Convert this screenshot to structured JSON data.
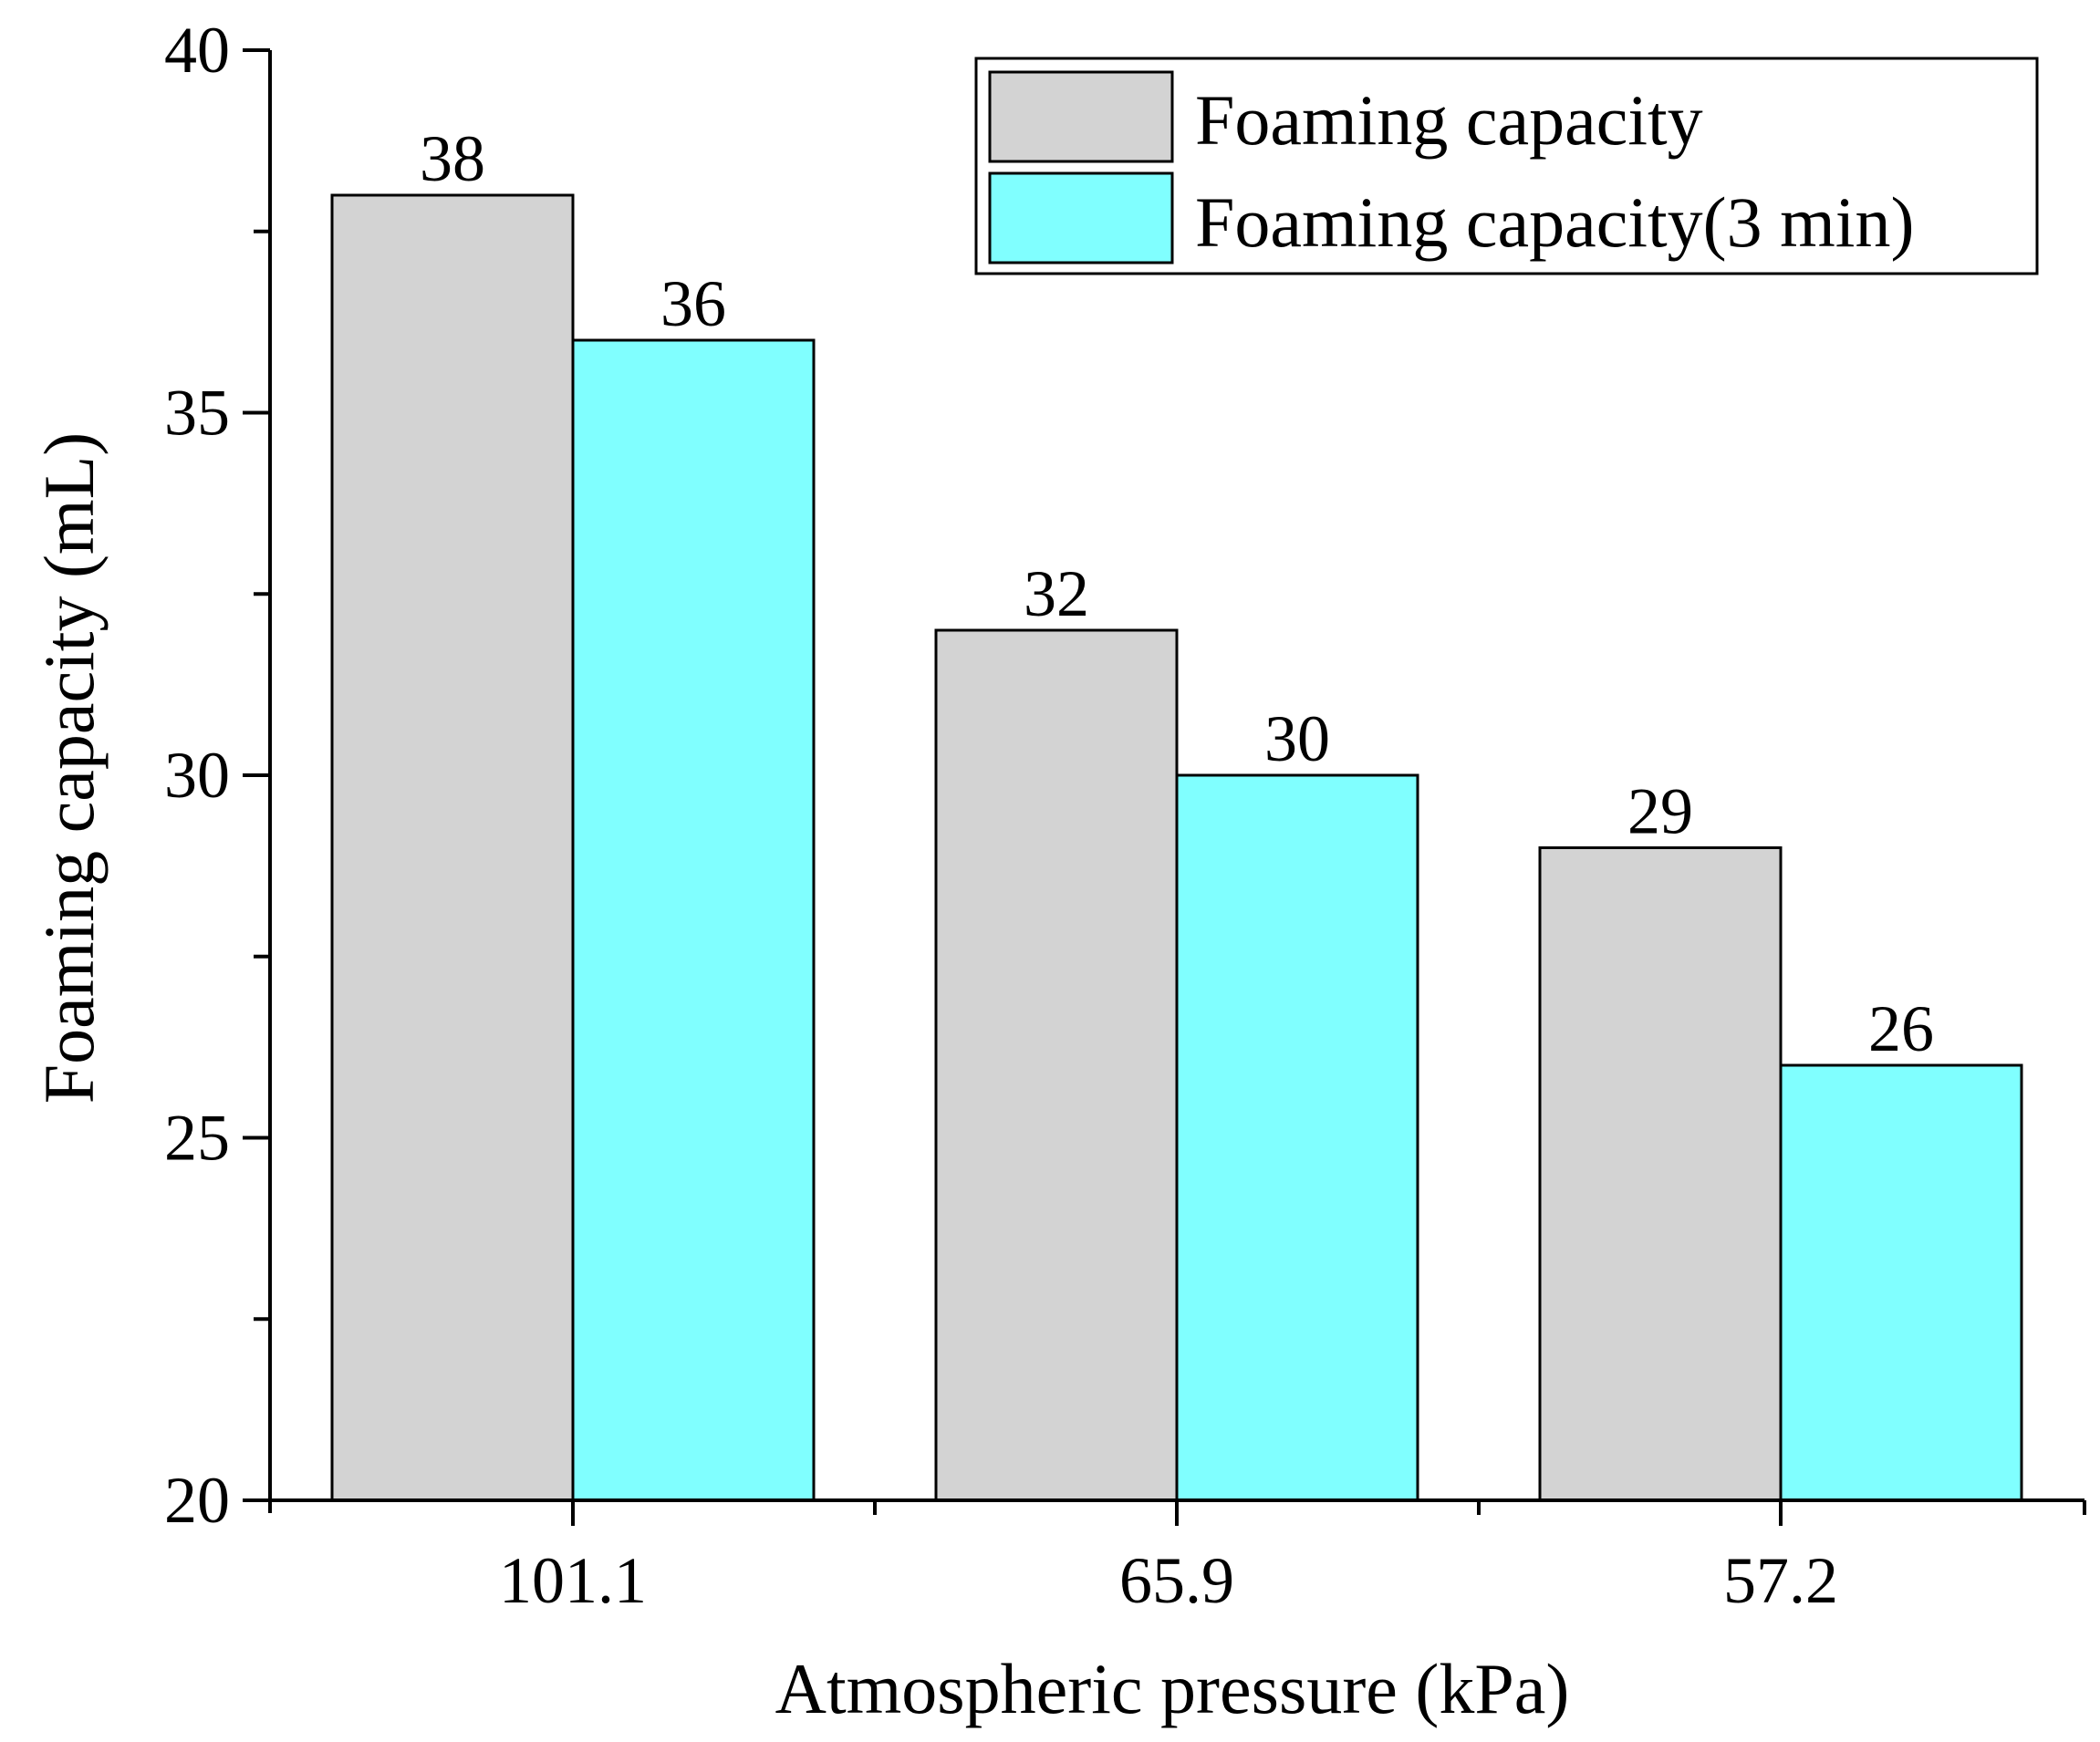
{
  "chart_data": {
    "type": "bar",
    "title": "",
    "xlabel": "Atmospheric pressure (kPa)",
    "ylabel": "Foaming capacity (mL)",
    "categories": [
      "101.1",
      "65.9",
      "57.2"
    ],
    "series": [
      {
        "name": "Foaming capacity",
        "values": [
          38,
          32,
          29
        ],
        "color": "#d3d3d3"
      },
      {
        "name": "Foaming capacity(3 min)",
        "values": [
          36,
          30,
          26
        ],
        "color": "#80ffff"
      }
    ],
    "data_labels": [
      [
        "38",
        "32",
        "29"
      ],
      [
        "36",
        "30",
        "26"
      ]
    ],
    "ylim": [
      20,
      40
    ],
    "yticks": [
      "20",
      "25",
      "30",
      "35",
      "40"
    ],
    "y_major_step": 5,
    "y_minor_step": 2.5,
    "grid": false,
    "legend_position": "top-right"
  }
}
